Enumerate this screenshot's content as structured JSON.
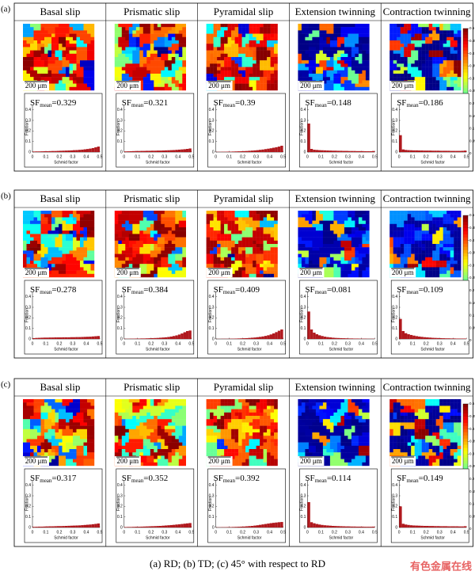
{
  "panels": [
    {
      "label": "(a)",
      "columns": [
        {
          "title": "Basal slip",
          "sf_mean": 0.329,
          "counts": [
            0.005,
            0.006,
            0.006,
            0.007,
            0.008,
            0.008,
            0.009,
            0.01,
            0.01,
            0.011,
            0.012,
            0.013,
            0.014,
            0.015,
            0.016,
            0.018,
            0.019,
            0.021,
            0.023,
            0.026,
            0.029,
            0.033,
            0.038,
            0.045,
            0.052
          ]
        },
        {
          "title": "Prismatic slip",
          "sf_mean": 0.321,
          "counts": [
            0.006,
            0.007,
            0.008,
            0.009,
            0.01,
            0.01,
            0.011,
            0.011,
            0.012,
            0.012,
            0.013,
            0.013,
            0.014,
            0.014,
            0.015,
            0.016,
            0.017,
            0.018,
            0.019,
            0.021,
            0.023,
            0.025,
            0.027,
            0.03,
            0.034
          ]
        },
        {
          "title": "Pyramidal slip",
          "sf_mean": 0.39,
          "counts": [
            0.002,
            0.002,
            0.003,
            0.003,
            0.004,
            0.004,
            0.005,
            0.006,
            0.007,
            0.008,
            0.009,
            0.01,
            0.012,
            0.014,
            0.016,
            0.018,
            0.021,
            0.024,
            0.028,
            0.032,
            0.036,
            0.041,
            0.046,
            0.052,
            0.06
          ]
        },
        {
          "title": "Extension twinning",
          "sf_mean": 0.148,
          "counts": [
            0.27,
            0.03,
            0.022,
            0.02,
            0.018,
            0.017,
            0.016,
            0.015,
            0.014,
            0.013,
            0.013,
            0.012,
            0.012,
            0.011,
            0.011,
            0.01,
            0.01,
            0.01,
            0.009,
            0.009,
            0.009,
            0.008,
            0.008,
            0.008,
            0.01
          ]
        },
        {
          "title": "Contraction twinning",
          "sf_mean": 0.186,
          "counts": [
            0.16,
            0.025,
            0.02,
            0.018,
            0.017,
            0.016,
            0.016,
            0.015,
            0.015,
            0.014,
            0.014,
            0.014,
            0.013,
            0.013,
            0.013,
            0.012,
            0.012,
            0.012,
            0.012,
            0.011,
            0.011,
            0.011,
            0.011,
            0.012,
            0.014
          ]
        }
      ]
    },
    {
      "label": "(b)",
      "columns": [
        {
          "title": "Basal slip",
          "sf_mean": 0.278,
          "counts": [
            0.008,
            0.01,
            0.011,
            0.012,
            0.013,
            0.013,
            0.014,
            0.014,
            0.015,
            0.015,
            0.015,
            0.016,
            0.016,
            0.016,
            0.017,
            0.017,
            0.018,
            0.018,
            0.019,
            0.02,
            0.021,
            0.022,
            0.024,
            0.026,
            0.028
          ]
        },
        {
          "title": "Prismatic slip",
          "sf_mean": 0.384,
          "counts": [
            0.002,
            0.002,
            0.003,
            0.003,
            0.004,
            0.004,
            0.005,
            0.005,
            0.006,
            0.007,
            0.008,
            0.009,
            0.01,
            0.012,
            0.014,
            0.016,
            0.019,
            0.023,
            0.028,
            0.034,
            0.042,
            0.052,
            0.064,
            0.075,
            0.08
          ]
        },
        {
          "title": "Pyramidal slip",
          "sf_mean": 0.409,
          "counts": [
            0.001,
            0.001,
            0.002,
            0.002,
            0.002,
            0.003,
            0.003,
            0.004,
            0.005,
            0.006,
            0.007,
            0.008,
            0.01,
            0.012,
            0.014,
            0.017,
            0.02,
            0.024,
            0.029,
            0.035,
            0.043,
            0.053,
            0.065,
            0.078,
            0.09
          ]
        },
        {
          "title": "Extension twinning",
          "sf_mean": 0.081,
          "counts": [
            0.26,
            0.09,
            0.06,
            0.045,
            0.035,
            0.028,
            0.022,
            0.018,
            0.015,
            0.012,
            0.01,
            0.009,
            0.008,
            0.007,
            0.006,
            0.005,
            0.005,
            0.004,
            0.004,
            0.003,
            0.003,
            0.003,
            0.002,
            0.002,
            0.002
          ]
        },
        {
          "title": "Contraction twinning",
          "sf_mean": 0.109,
          "counts": [
            0.19,
            0.075,
            0.055,
            0.045,
            0.038,
            0.032,
            0.027,
            0.023,
            0.02,
            0.017,
            0.015,
            0.013,
            0.011,
            0.01,
            0.009,
            0.008,
            0.007,
            0.006,
            0.006,
            0.005,
            0.005,
            0.004,
            0.004,
            0.004,
            0.004
          ]
        }
      ]
    },
    {
      "label": "(c)",
      "columns": [
        {
          "title": "Basal slip",
          "sf_mean": 0.317,
          "counts": [
            0.006,
            0.007,
            0.008,
            0.008,
            0.009,
            0.01,
            0.011,
            0.011,
            0.012,
            0.013,
            0.013,
            0.014,
            0.015,
            0.016,
            0.017,
            0.018,
            0.019,
            0.02,
            0.022,
            0.024,
            0.026,
            0.028,
            0.031,
            0.034,
            0.038
          ]
        },
        {
          "title": "Prismatic slip",
          "sf_mean": 0.352,
          "counts": [
            0.004,
            0.005,
            0.005,
            0.006,
            0.007,
            0.007,
            0.008,
            0.009,
            0.01,
            0.011,
            0.012,
            0.013,
            0.014,
            0.015,
            0.017,
            0.019,
            0.021,
            0.023,
            0.025,
            0.028,
            0.03,
            0.033,
            0.036,
            0.039,
            0.042
          ]
        },
        {
          "title": "Pyramidal slip",
          "sf_mean": 0.392,
          "counts": [
            0.002,
            0.002,
            0.003,
            0.003,
            0.004,
            0.004,
            0.005,
            0.006,
            0.007,
            0.008,
            0.009,
            0.011,
            0.013,
            0.015,
            0.018,
            0.021,
            0.025,
            0.029,
            0.033,
            0.037,
            0.041,
            0.044,
            0.047,
            0.05,
            0.052
          ]
        },
        {
          "title": "Extension twinning",
          "sf_mean": 0.114,
          "counts": [
            0.24,
            0.05,
            0.04,
            0.033,
            0.028,
            0.024,
            0.021,
            0.019,
            0.017,
            0.015,
            0.014,
            0.013,
            0.012,
            0.011,
            0.01,
            0.01,
            0.009,
            0.009,
            0.008,
            0.008,
            0.008,
            0.007,
            0.007,
            0.007,
            0.008
          ]
        },
        {
          "title": "Contraction twinning",
          "sf_mean": 0.149,
          "counts": [
            0.2,
            0.035,
            0.028,
            0.024,
            0.021,
            0.019,
            0.018,
            0.017,
            0.016,
            0.015,
            0.015,
            0.014,
            0.014,
            0.013,
            0.013,
            0.012,
            0.012,
            0.012,
            0.011,
            0.011,
            0.011,
            0.011,
            0.01,
            0.01,
            0.012
          ]
        }
      ]
    }
  ],
  "sf_symbol": "SF",
  "sf_subscript": "mean",
  "sf_equals": "=",
  "scale_bar": "200 μm",
  "histogram": {
    "type": "histogram",
    "bins": [
      0,
      0.02,
      0.04,
      0.06,
      0.08,
      0.1,
      0.12,
      0.14,
      0.16,
      0.18,
      0.2,
      0.22,
      0.24,
      0.26,
      0.28,
      0.3,
      0.32,
      0.34,
      0.36,
      0.38,
      0.4,
      0.42,
      0.44,
      0.46,
      0.48,
      0.5
    ],
    "xlim": [
      0,
      0.5
    ],
    "ylim": [
      0,
      0.45
    ],
    "xticks": [
      0,
      0.1,
      0.2,
      0.3,
      0.4,
      0.5
    ],
    "yticks": [
      0,
      0.1,
      0.2,
      0.3,
      0.4
    ],
    "xlabel": "Schmid factor",
    "ylabel": "Fraction",
    "color": "#b0191e"
  },
  "colorbar_ticks": [
    0,
    0.05,
    0.1,
    0.15,
    0.2,
    0.25,
    0.3,
    0.35,
    0.4,
    0.45,
    0.5
  ],
  "caption": "(a) RD; (b) TD; (c) 45° with respect to RD",
  "watermark": "有色金属在线"
}
